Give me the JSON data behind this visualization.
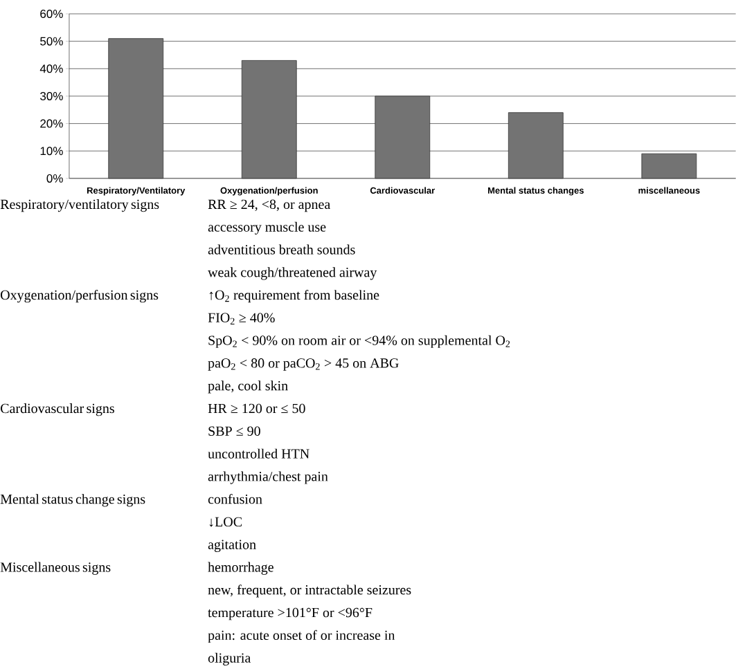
{
  "chart_data": {
    "type": "bar",
    "categories": [
      "Respiratory/Ventilatory",
      "Oxygenation/perfusion",
      "Cardiovascular",
      "Mental status changes",
      "miscellaneous"
    ],
    "values": [
      51,
      43,
      30,
      24,
      9
    ],
    "color": "#737373",
    "ylim": [
      0,
      60
    ],
    "yticks": [
      {
        "value": 0,
        "label": "0%"
      },
      {
        "value": 10,
        "label": "10%"
      },
      {
        "value": 20,
        "label": "20%"
      },
      {
        "value": 30,
        "label": "30%"
      },
      {
        "value": 40,
        "label": "40%"
      },
      {
        "value": 50,
        "label": "50%"
      },
      {
        "value": 60,
        "label": "60%"
      }
    ],
    "grid": "y",
    "annotations": [
      "Respiratory/ventilatory signs",
      "RR ≥ 24, <8, or apnea",
      "accessory muscle use",
      "adventitious breath sounds",
      "weak cough/threatened airway",
      "Oxygenation/perfusion signs",
      "↑O$_{2}$ requirement from baseline",
      "FIO$_{2}$ ≥ 40%",
      "SpO$_{2}$ < 90% on room air or <94% on supplemental O$_{2}$",
      "paO$_{2}$ < 80 or paCO$_{2}$ > 45 on ABG",
      "pale, cool skin",
      "Cardiovascular signs",
      "HR ≥ 120 or ≤ 50",
      "SBP ≤ 90",
      "uncontrolled HTN",
      "arrhythmia/chest pain",
      "Mental status change signs",
      "confusion",
      "↓LOC",
      "agitation",
      "Miscellaneous signs",
      "hemorrhage",
      "new, frequent, or intractable seizures",
      "temperature >101°F or <96°F",
      "pain: acute onset of or increase in",
      "oliguria"
    ]
  }
}
